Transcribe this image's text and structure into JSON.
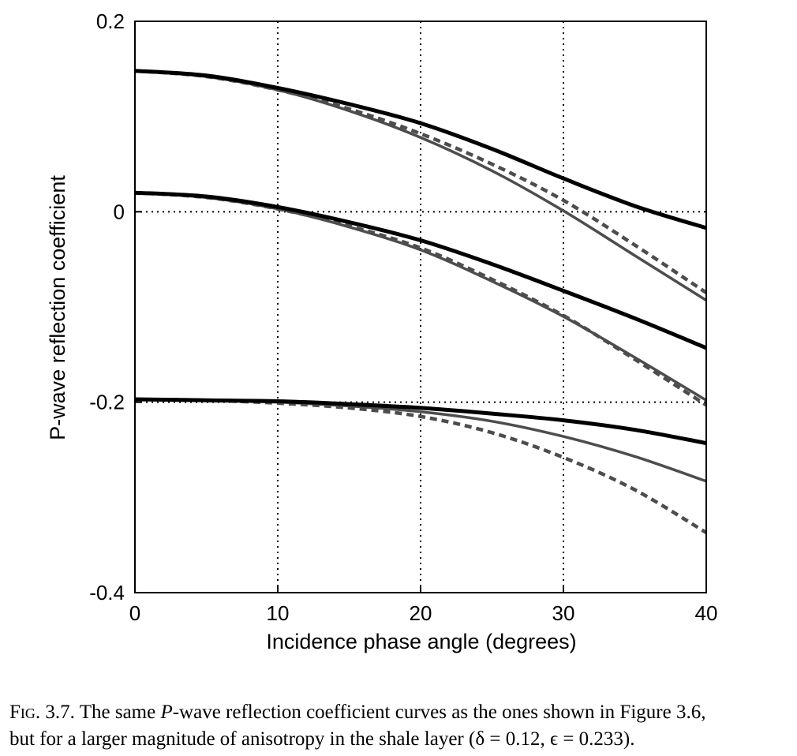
{
  "chart_data": {
    "type": "line",
    "title": "",
    "xlabel": "Incidence phase angle (degrees)",
    "ylabel": "P-wave reflection coefficient",
    "xlim": [
      0,
      40
    ],
    "ylim": [
      -0.4,
      0.2
    ],
    "xticks": [
      0,
      10,
      20,
      30,
      40
    ],
    "yticks": [
      -0.4,
      -0.2,
      0,
      0.2
    ],
    "xtick_labels": [
      "0",
      "10",
      "20",
      "30",
      "40"
    ],
    "ytick_labels": [
      "-0.4",
      "-0.2",
      "0",
      "0.2"
    ],
    "grid": "dotted lines at x = 10, 20, 30 and y = -0.2, 0",
    "legend": "none",
    "series": [
      {
        "style": "thick-solid",
        "color": "#000000",
        "x": [
          0,
          5,
          10,
          15,
          20,
          25,
          30,
          35,
          40
        ],
        "y": [
          0.148,
          0.143,
          0.13,
          0.113,
          0.093,
          0.066,
          0.035,
          0.006,
          -0.017
        ]
      },
      {
        "style": "solid",
        "color": "#4d4d4d",
        "x": [
          0,
          5,
          10,
          15,
          20,
          25,
          30,
          35,
          40
        ],
        "y": [
          0.148,
          0.142,
          0.128,
          0.106,
          0.078,
          0.043,
          0.001,
          -0.046,
          -0.093
        ]
      },
      {
        "style": "dashed",
        "color": "#4d4d4d",
        "x": [
          0,
          5,
          10,
          15,
          20,
          25,
          30,
          35,
          40
        ],
        "y": [
          0.148,
          0.142,
          0.128,
          0.108,
          0.082,
          0.05,
          0.012,
          -0.035,
          -0.085
        ]
      },
      {
        "style": "thick-solid",
        "color": "#000000",
        "x": [
          0,
          5,
          10,
          15,
          20,
          25,
          30,
          35,
          40
        ],
        "y": [
          0.02,
          0.016,
          0.005,
          -0.011,
          -0.03,
          -0.055,
          -0.083,
          -0.112,
          -0.143
        ]
      },
      {
        "style": "solid",
        "color": "#4d4d4d",
        "x": [
          0,
          5,
          10,
          15,
          20,
          25,
          30,
          35,
          40
        ],
        "y": [
          0.02,
          0.015,
          0.003,
          -0.016,
          -0.04,
          -0.073,
          -0.11,
          -0.153,
          -0.198
        ]
      },
      {
        "style": "dashed",
        "color": "#4d4d4d",
        "x": [
          0,
          5,
          10,
          15,
          20,
          25,
          30,
          35,
          40
        ],
        "y": [
          0.02,
          0.015,
          0.003,
          -0.015,
          -0.038,
          -0.071,
          -0.109,
          -0.155,
          -0.203
        ]
      },
      {
        "style": "thick-solid",
        "color": "#000000",
        "x": [
          0,
          5,
          10,
          15,
          20,
          25,
          30,
          35,
          40
        ],
        "y": [
          -0.197,
          -0.198,
          -0.199,
          -0.202,
          -0.206,
          -0.212,
          -0.219,
          -0.229,
          -0.243
        ]
      },
      {
        "style": "solid",
        "color": "#4d4d4d",
        "x": [
          0,
          5,
          10,
          15,
          20,
          25,
          30,
          35,
          40
        ],
        "y": [
          -0.197,
          -0.198,
          -0.2,
          -0.204,
          -0.21,
          -0.22,
          -0.236,
          -0.257,
          -0.283
        ]
      },
      {
        "style": "dashed",
        "color": "#4d4d4d",
        "x": [
          0,
          5,
          10,
          15,
          20,
          25,
          30,
          35,
          40
        ],
        "y": [
          -0.197,
          -0.198,
          -0.201,
          -0.206,
          -0.215,
          -0.232,
          -0.258,
          -0.292,
          -0.337
        ]
      }
    ]
  },
  "caption": {
    "label": "Fig. 3.7.",
    "line1_a": "The same ",
    "line1_italic": "P",
    "line1_b": "-wave reflection coefficient curves as the ones shown in Figure 3.6,",
    "line2": "but for a larger magnitude of anisotropy in the shale layer (δ = 0.12, ϵ = 0.233)."
  }
}
